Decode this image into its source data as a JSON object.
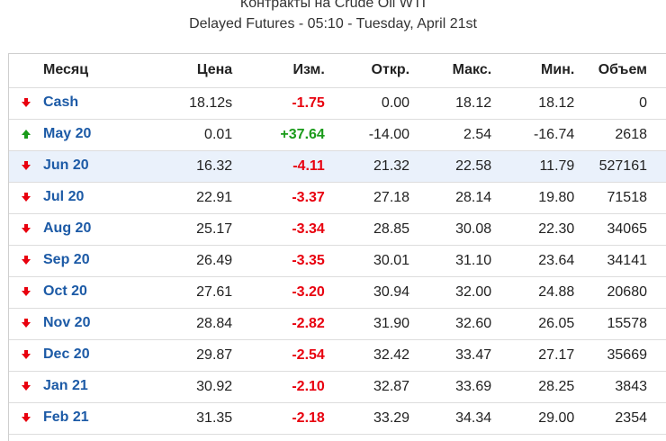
{
  "header": {
    "title": "Контракты на Crude Oil WTI",
    "subtitle": "Delayed Futures - 05:10 - Tuesday, April 21st"
  },
  "columns": {
    "month": "Месяц",
    "price": "Цена",
    "change": "Изм.",
    "open": "Откр.",
    "high": "Макс.",
    "low": "Мин.",
    "volume": "Объем"
  },
  "colors": {
    "up": "#1a9b1a",
    "down": "#e8000e",
    "link": "#1c5aa6",
    "highlight_row": "#eaf1fb"
  },
  "rows": [
    {
      "month": "Cash",
      "direction": "down",
      "price": "18.12s",
      "change": "-1.75",
      "open": "0.00",
      "high": "18.12",
      "low": "18.12",
      "volume": "0"
    },
    {
      "month": "May 20",
      "direction": "up",
      "price": "0.01",
      "change": "+37.64",
      "open": "-14.00",
      "high": "2.54",
      "low": "-16.74",
      "volume": "2618"
    },
    {
      "month": "Jun 20",
      "direction": "down",
      "price": "16.32",
      "change": "-4.11",
      "open": "21.32",
      "high": "22.58",
      "low": "11.79",
      "volume": "527161",
      "highlighted": true
    },
    {
      "month": "Jul 20",
      "direction": "down",
      "price": "22.91",
      "change": "-3.37",
      "open": "27.18",
      "high": "28.14",
      "low": "19.80",
      "volume": "71518"
    },
    {
      "month": "Aug 20",
      "direction": "down",
      "price": "25.17",
      "change": "-3.34",
      "open": "28.85",
      "high": "30.08",
      "low": "22.30",
      "volume": "34065"
    },
    {
      "month": "Sep 20",
      "direction": "down",
      "price": "26.49",
      "change": "-3.35",
      "open": "30.01",
      "high": "31.10",
      "low": "23.64",
      "volume": "34141"
    },
    {
      "month": "Oct 20",
      "direction": "down",
      "price": "27.61",
      "change": "-3.20",
      "open": "30.94",
      "high": "32.00",
      "low": "24.88",
      "volume": "20680"
    },
    {
      "month": "Nov 20",
      "direction": "down",
      "price": "28.84",
      "change": "-2.82",
      "open": "31.90",
      "high": "32.60",
      "low": "26.05",
      "volume": "15578"
    },
    {
      "month": "Dec 20",
      "direction": "down",
      "price": "29.87",
      "change": "-2.54",
      "open": "32.42",
      "high": "33.47",
      "low": "27.17",
      "volume": "35669"
    },
    {
      "month": "Jan 21",
      "direction": "down",
      "price": "30.92",
      "change": "-2.10",
      "open": "32.87",
      "high": "33.69",
      "low": "28.25",
      "volume": "3843"
    },
    {
      "month": "Feb 21",
      "direction": "down",
      "price": "31.35",
      "change": "-2.18",
      "open": "33.29",
      "high": "34.34",
      "low": "29.00",
      "volume": "2354"
    }
  ]
}
